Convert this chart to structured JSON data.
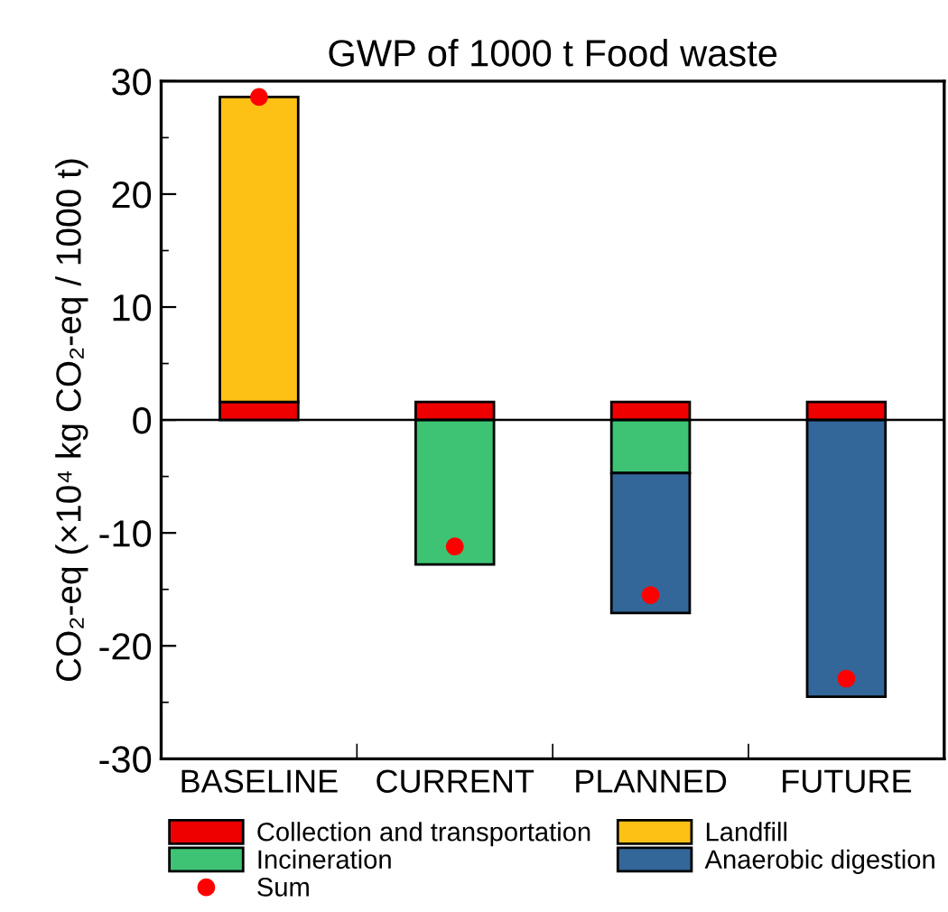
{
  "chart_data": {
    "type": "bar",
    "title": "GWP of 1000 t Food waste",
    "ylabel": "CO₂-eq (×10⁴ kg CO₂-eq / 1000 t)",
    "categories": [
      "BASELINE",
      "CURRENT",
      "PLANNED",
      "FUTURE"
    ],
    "stacked": true,
    "series": [
      {
        "name": "Collection and transportation",
        "color": "#ee0000",
        "values": [
          1.6,
          1.6,
          1.6,
          1.6
        ]
      },
      {
        "name": "Landfill",
        "color": "#fdc116",
        "values": [
          27.0,
          null,
          null,
          null
        ]
      },
      {
        "name": "Incineration",
        "color": "#3dc373",
        "values": [
          null,
          -12.8,
          -4.7,
          null
        ]
      },
      {
        "name": "Anaerobic digestion",
        "color": "#336699",
        "values": [
          null,
          null,
          -12.4,
          -24.5
        ]
      },
      {
        "name": "Sum",
        "type": "scatter",
        "color": "#ff0000",
        "marker": "circle",
        "x": [
          "BASELINE",
          "CURRENT",
          "PLANNED",
          "FUTURE"
        ],
        "values": [
          28.6,
          -11.2,
          -15.5,
          -22.9
        ]
      }
    ],
    "ylim": [
      -30,
      30
    ],
    "yticks": [
      -30,
      -20,
      -10,
      0,
      10,
      20,
      30
    ],
    "ref_lines": [
      {
        "axis": "y",
        "value": 0
      }
    ],
    "grid": false,
    "legend": "bottom"
  }
}
